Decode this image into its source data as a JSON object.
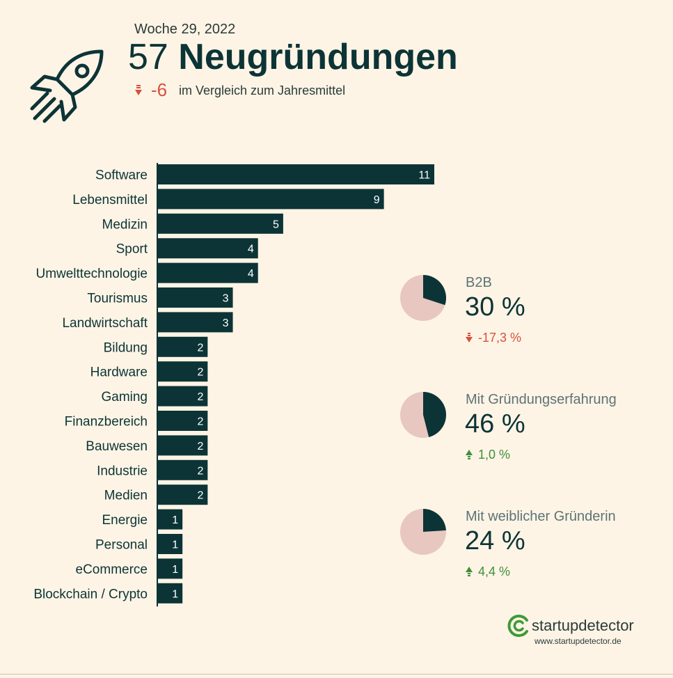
{
  "header": {
    "week": "Woche 29, 2022",
    "count": "57",
    "title": "Neugründungen",
    "delta_value": "-6",
    "delta_text": "im Vergleich zum Jahresmittel",
    "icon": "rocket-icon"
  },
  "chart_data": {
    "type": "bar",
    "orientation": "horizontal",
    "title": "",
    "xlabel": "",
    "ylabel": "",
    "xlim": [
      0,
      11
    ],
    "categories": [
      "Software",
      "Lebensmittel",
      "Medizin",
      "Sport",
      "Umwelttechnologie",
      "Tourismus",
      "Landwirtschaft",
      "Bildung",
      "Hardware",
      "Gaming",
      "Finanzbereich",
      "Bauwesen",
      "Industrie",
      "Medien",
      "Energie",
      "Personal",
      "eCommerce",
      "Blockchain / Crypto"
    ],
    "values": [
      11,
      9,
      5,
      4,
      4,
      3,
      3,
      2,
      2,
      2,
      2,
      2,
      2,
      2,
      1,
      1,
      1,
      1
    ]
  },
  "stats": [
    {
      "label": "B2B",
      "value": "30 %",
      "fraction": 0.3,
      "change": "-17,3 %",
      "direction": "down"
    },
    {
      "label": "Mit Gründungserfahrung",
      "value": "46 %",
      "fraction": 0.46,
      "change": "1,0 %",
      "direction": "up"
    },
    {
      "label": "Mit weiblicher Gründerin",
      "value": "24 %",
      "fraction": 0.24,
      "change": "4,4 %",
      "direction": "up"
    }
  ],
  "brand": {
    "name": "startupdetector",
    "url": "www.startupdetector.de"
  },
  "colors": {
    "background": "#fdf4e5",
    "bar": "#0c3436",
    "pie_fill": "#0c3436",
    "pie_rest": "#e8c7c0",
    "down": "#d94f3d",
    "up": "#3f8f3a",
    "brand_green": "#3f9a36"
  }
}
